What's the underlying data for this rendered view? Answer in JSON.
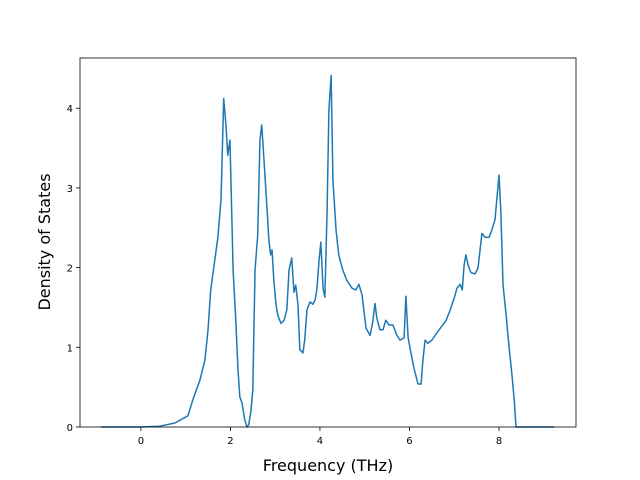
{
  "chart_data": {
    "type": "line",
    "xlabel": "Frequency (THz)",
    "ylabel": "Density of States",
    "color": "#1f77b4",
    "x": [
      -0.89,
      0,
      0.42,
      0.76,
      1.05,
      1.16,
      1.32,
      1.43,
      1.5,
      1.56,
      1.65,
      1.72,
      1.79,
      1.85,
      1.9,
      1.94,
      1.99,
      2.06,
      2.12,
      2.17,
      2.21,
      2.26,
      2.32,
      2.37,
      2.41,
      2.46,
      2.5,
      2.55,
      2.61,
      2.66,
      2.7,
      2.75,
      2.82,
      2.86,
      2.9,
      2.93,
      2.97,
      3.02,
      3.06,
      3.13,
      3.2,
      3.26,
      3.31,
      3.37,
      3.42,
      3.46,
      3.51,
      3.55,
      3.62,
      3.66,
      3.71,
      3.78,
      3.84,
      3.89,
      3.93,
      3.98,
      4.02,
      4.07,
      4.11,
      4.16,
      4.2,
      4.25,
      4.29,
      4.36,
      4.42,
      4.51,
      4.6,
      4.72,
      4.8,
      4.87,
      4.94,
      4.98,
      5.03,
      5.12,
      5.18,
      5.23,
      5.27,
      5.34,
      5.41,
      5.47,
      5.54,
      5.63,
      5.72,
      5.79,
      5.88,
      5.92,
      5.97,
      6.03,
      6.1,
      6.19,
      6.26,
      6.3,
      6.35,
      6.41,
      6.5,
      6.61,
      6.73,
      6.82,
      6.91,
      7.0,
      7.06,
      7.13,
      7.18,
      7.22,
      7.26,
      7.31,
      7.37,
      7.46,
      7.53,
      7.6,
      7.62,
      7.69,
      7.78,
      7.84,
      7.91,
      7.96,
      8.0,
      8.04,
      8.09,
      8.16,
      8.22,
      8.29,
      8.34,
      8.38,
      9.23
    ],
    "values": [
      0,
      0,
      0.01,
      0.05,
      0.14,
      0.34,
      0.59,
      0.84,
      1.22,
      1.72,
      2.09,
      2.38,
      2.85,
      4.12,
      3.79,
      3.41,
      3.6,
      1.97,
      1.34,
      0.71,
      0.38,
      0.3,
      0.09,
      0,
      0.03,
      0.21,
      0.46,
      1.97,
      2.41,
      3.6,
      3.79,
      3.35,
      2.72,
      2.34,
      2.16,
      2.22,
      1.84,
      1.53,
      1.4,
      1.3,
      1.34,
      1.47,
      1.97,
      2.12,
      1.69,
      1.78,
      1.53,
      0.97,
      0.93,
      1.09,
      1.47,
      1.57,
      1.54,
      1.59,
      1.72,
      2.09,
      2.32,
      1.74,
      1.63,
      2.72,
      3.97,
      4.41,
      3.1,
      2.47,
      2.16,
      1.97,
      1.84,
      1.74,
      1.72,
      1.79,
      1.66,
      1.47,
      1.24,
      1.15,
      1.32,
      1.55,
      1.37,
      1.22,
      1.22,
      1.34,
      1.28,
      1.28,
      1.15,
      1.09,
      1.12,
      1.64,
      1.12,
      0.94,
      0.74,
      0.54,
      0.54,
      0.84,
      1.09,
      1.05,
      1.09,
      1.18,
      1.27,
      1.34,
      1.47,
      1.62,
      1.74,
      1.79,
      1.72,
      2.03,
      2.16,
      2.03,
      1.94,
      1.92,
      1.99,
      2.34,
      2.43,
      2.38,
      2.38,
      2.47,
      2.6,
      2.91,
      3.16,
      2.72,
      1.78,
      1.4,
      1.03,
      0.65,
      0.34,
      0,
      0
    ],
    "xlim": [
      -1.36,
      9.72
    ],
    "ylim": [
      0,
      4.63
    ],
    "xticks": [
      0,
      2,
      4,
      6,
      8
    ],
    "yticks": [
      0,
      1,
      2,
      3,
      4
    ]
  }
}
